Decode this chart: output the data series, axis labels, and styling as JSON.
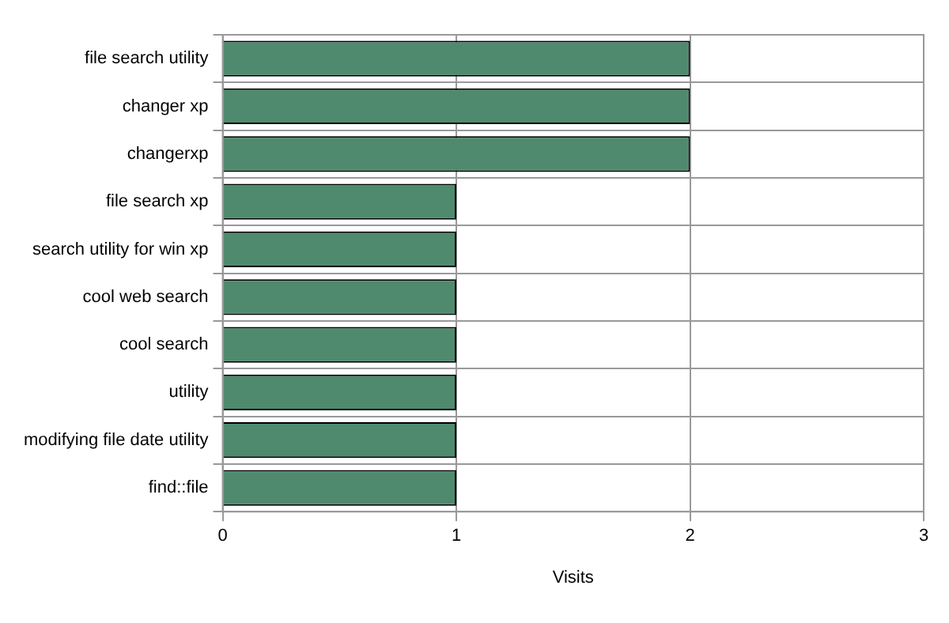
{
  "chart_data": {
    "type": "bar",
    "orientation": "horizontal",
    "xlabel": "Visits",
    "categories": [
      "file search utility",
      "changer xp",
      "changerxp",
      "file search xp",
      "search utility for win xp",
      "cool web search",
      "cool search",
      "utility",
      "modifying file date utility",
      "find::file"
    ],
    "values": [
      2,
      2,
      2,
      1,
      1,
      1,
      1,
      1,
      1,
      1
    ],
    "color": "#4f8a6e",
    "xlim": [
      0,
      3
    ],
    "xticks": [
      0,
      1,
      2,
      3
    ],
    "grid": true
  }
}
